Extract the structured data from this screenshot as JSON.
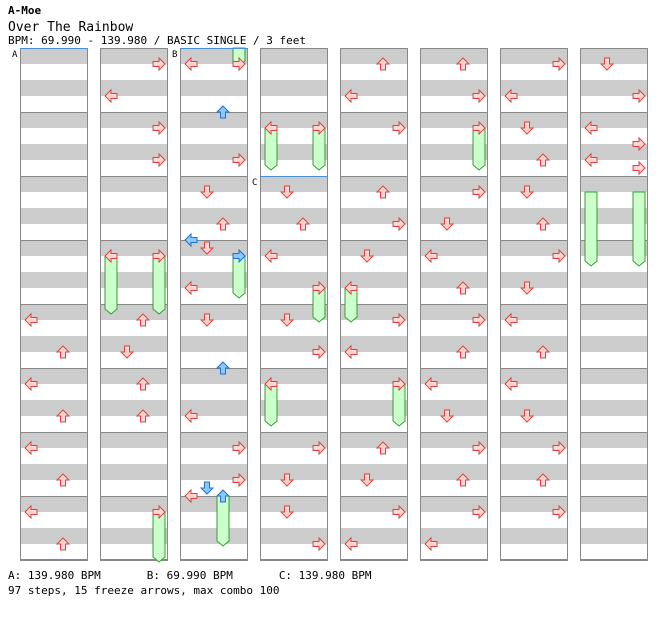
{
  "header": {
    "artist": "A-Moe",
    "title": "Over The Rainbow",
    "info": "BPM: 69.990 - 139.980 / BASIC SINGLE / 3 feet"
  },
  "footer": {
    "bpm_a": "A: 139.980 BPM",
    "bpm_b": "B: 69.990 BPM",
    "bpm_c": "C: 139.980 BPM",
    "stats": "97 steps, 15 freeze arrows, max combo 100"
  },
  "colors": {
    "stripe": "#cccccc",
    "arrow_red_fill": "#ffd6d6",
    "arrow_red_stroke": "#e04040",
    "arrow_blue_fill": "#8cc8ff",
    "arrow_blue_stroke": "#2070d0",
    "freeze_fill": "#ccffcc",
    "freeze_stroke": "#30a030",
    "bpm_line": "#4a90d9"
  },
  "chart_data": {
    "type": "stepchart",
    "columns": 8,
    "measures_per_column": 8,
    "lanes": [
      "left",
      "down",
      "up",
      "right"
    ],
    "bpm_sections": [
      {
        "label": "A",
        "col": 0,
        "pos": 0
      },
      {
        "label": "B",
        "col": 2,
        "pos": 0
      },
      {
        "label": "C",
        "col": 3,
        "pos": 4
      }
    ],
    "notes": [
      {
        "col": 0,
        "pos": 8.5,
        "lane": "left"
      },
      {
        "col": 0,
        "pos": 10.5,
        "lane": "left"
      },
      {
        "col": 0,
        "pos": 12.5,
        "lane": "left"
      },
      {
        "col": 0,
        "pos": 14.5,
        "lane": "left"
      },
      {
        "col": 0,
        "pos": 9.5,
        "lane": "up"
      },
      {
        "col": 0,
        "pos": 11.5,
        "lane": "up"
      },
      {
        "col": 0,
        "pos": 13.5,
        "lane": "up"
      },
      {
        "col": 0,
        "pos": 15.5,
        "lane": "up"
      },
      {
        "col": 1,
        "pos": 0.5,
        "lane": "right"
      },
      {
        "col": 1,
        "pos": 1.5,
        "lane": "left"
      },
      {
        "col": 1,
        "pos": 2.5,
        "lane": "right"
      },
      {
        "col": 1,
        "pos": 3.5,
        "lane": "right"
      },
      {
        "col": 1,
        "pos": 6.5,
        "lane": "left"
      },
      {
        "col": 1,
        "pos": 6.5,
        "lane": "right"
      },
      {
        "col": 1,
        "pos": 8.5,
        "lane": "up"
      },
      {
        "col": 1,
        "pos": 9.5,
        "lane": "down"
      },
      {
        "col": 1,
        "pos": 10.5,
        "lane": "up"
      },
      {
        "col": 1,
        "pos": 11.5,
        "lane": "up"
      },
      {
        "col": 1,
        "pos": 14.5,
        "lane": "right"
      },
      {
        "col": 2,
        "pos": 0.5,
        "lane": "left"
      },
      {
        "col": 2,
        "pos": 0.5,
        "lane": "right"
      },
      {
        "col": 2,
        "pos": 2.0,
        "lane": "up",
        "color": "blue"
      },
      {
        "col": 2,
        "pos": 3.5,
        "lane": "right"
      },
      {
        "col": 2,
        "pos": 4.5,
        "lane": "down"
      },
      {
        "col": 2,
        "pos": 5.5,
        "lane": "up"
      },
      {
        "col": 2,
        "pos": 6.0,
        "lane": "left",
        "color": "blue"
      },
      {
        "col": 2,
        "pos": 6.25,
        "lane": "down"
      },
      {
        "col": 2,
        "pos": 6.5,
        "lane": "right",
        "color": "blue"
      },
      {
        "col": 2,
        "pos": 7.5,
        "lane": "left"
      },
      {
        "col": 2,
        "pos": 8.5,
        "lane": "down"
      },
      {
        "col": 2,
        "pos": 10.0,
        "lane": "up",
        "color": "blue"
      },
      {
        "col": 2,
        "pos": 11.5,
        "lane": "left"
      },
      {
        "col": 2,
        "pos": 12.5,
        "lane": "right"
      },
      {
        "col": 2,
        "pos": 13.5,
        "lane": "right"
      },
      {
        "col": 2,
        "pos": 13.75,
        "lane": "down",
        "color": "blue"
      },
      {
        "col": 2,
        "pos": 14.0,
        "lane": "left"
      },
      {
        "col": 2,
        "pos": 14.0,
        "lane": "up",
        "color": "blue"
      },
      {
        "col": 3,
        "pos": 2.5,
        "lane": "left"
      },
      {
        "col": 3,
        "pos": 2.5,
        "lane": "right"
      },
      {
        "col": 3,
        "pos": 4.5,
        "lane": "down"
      },
      {
        "col": 3,
        "pos": 5.5,
        "lane": "up"
      },
      {
        "col": 3,
        "pos": 6.5,
        "lane": "left"
      },
      {
        "col": 3,
        "pos": 7.5,
        "lane": "right"
      },
      {
        "col": 3,
        "pos": 8.5,
        "lane": "down"
      },
      {
        "col": 3,
        "pos": 9.5,
        "lane": "right"
      },
      {
        "col": 3,
        "pos": 10.5,
        "lane": "left"
      },
      {
        "col": 3,
        "pos": 12.5,
        "lane": "right"
      },
      {
        "col": 3,
        "pos": 13.5,
        "lane": "down"
      },
      {
        "col": 3,
        "pos": 14.5,
        "lane": "down"
      },
      {
        "col": 3,
        "pos": 15.5,
        "lane": "right"
      },
      {
        "col": 4,
        "pos": 0.5,
        "lane": "up"
      },
      {
        "col": 4,
        "pos": 1.5,
        "lane": "left"
      },
      {
        "col": 4,
        "pos": 2.5,
        "lane": "right"
      },
      {
        "col": 4,
        "pos": 4.5,
        "lane": "up"
      },
      {
        "col": 4,
        "pos": 5.5,
        "lane": "right"
      },
      {
        "col": 4,
        "pos": 6.5,
        "lane": "down"
      },
      {
        "col": 4,
        "pos": 7.5,
        "lane": "left"
      },
      {
        "col": 4,
        "pos": 8.5,
        "lane": "right"
      },
      {
        "col": 4,
        "pos": 9.5,
        "lane": "left"
      },
      {
        "col": 4,
        "pos": 10.5,
        "lane": "right"
      },
      {
        "col": 4,
        "pos": 12.5,
        "lane": "up"
      },
      {
        "col": 4,
        "pos": 13.5,
        "lane": "down"
      },
      {
        "col": 4,
        "pos": 14.5,
        "lane": "right"
      },
      {
        "col": 4,
        "pos": 15.5,
        "lane": "left"
      },
      {
        "col": 5,
        "pos": 0.5,
        "lane": "up"
      },
      {
        "col": 5,
        "pos": 1.5,
        "lane": "right"
      },
      {
        "col": 5,
        "pos": 2.5,
        "lane": "right"
      },
      {
        "col": 5,
        "pos": 4.5,
        "lane": "right"
      },
      {
        "col": 5,
        "pos": 5.5,
        "lane": "down"
      },
      {
        "col": 5,
        "pos": 6.5,
        "lane": "left"
      },
      {
        "col": 5,
        "pos": 7.5,
        "lane": "up"
      },
      {
        "col": 5,
        "pos": 8.5,
        "lane": "right"
      },
      {
        "col": 5,
        "pos": 9.5,
        "lane": "up"
      },
      {
        "col": 5,
        "pos": 10.5,
        "lane": "left"
      },
      {
        "col": 5,
        "pos": 11.5,
        "lane": "down"
      },
      {
        "col": 5,
        "pos": 12.5,
        "lane": "right"
      },
      {
        "col": 5,
        "pos": 13.5,
        "lane": "up"
      },
      {
        "col": 5,
        "pos": 14.5,
        "lane": "right"
      },
      {
        "col": 5,
        "pos": 15.5,
        "lane": "left"
      },
      {
        "col": 6,
        "pos": 0.5,
        "lane": "right"
      },
      {
        "col": 6,
        "pos": 1.5,
        "lane": "left"
      },
      {
        "col": 6,
        "pos": 2.5,
        "lane": "down"
      },
      {
        "col": 6,
        "pos": 3.5,
        "lane": "up"
      },
      {
        "col": 6,
        "pos": 4.5,
        "lane": "down"
      },
      {
        "col": 6,
        "pos": 5.5,
        "lane": "up"
      },
      {
        "col": 6,
        "pos": 6.5,
        "lane": "right"
      },
      {
        "col": 6,
        "pos": 7.5,
        "lane": "down"
      },
      {
        "col": 6,
        "pos": 8.5,
        "lane": "left"
      },
      {
        "col": 6,
        "pos": 9.5,
        "lane": "up"
      },
      {
        "col": 6,
        "pos": 10.5,
        "lane": "left"
      },
      {
        "col": 6,
        "pos": 11.5,
        "lane": "down"
      },
      {
        "col": 6,
        "pos": 12.5,
        "lane": "right"
      },
      {
        "col": 6,
        "pos": 13.5,
        "lane": "up"
      },
      {
        "col": 6,
        "pos": 14.5,
        "lane": "right"
      },
      {
        "col": 7,
        "pos": 0.5,
        "lane": "down"
      },
      {
        "col": 7,
        "pos": 1.5,
        "lane": "right"
      },
      {
        "col": 7,
        "pos": 2.5,
        "lane": "left"
      },
      {
        "col": 7,
        "pos": 3.0,
        "lane": "right"
      },
      {
        "col": 7,
        "pos": 3.5,
        "lane": "left"
      },
      {
        "col": 7,
        "pos": 3.75,
        "lane": "right"
      }
    ],
    "freezes": [
      {
        "col": 1,
        "start": 6.5,
        "end": 8.25,
        "lane": "left"
      },
      {
        "col": 1,
        "start": 6.5,
        "end": 8.25,
        "lane": "right"
      },
      {
        "col": 1,
        "start": 14.5,
        "end": 16.0,
        "lane": "right"
      },
      {
        "col": 2,
        "start": 0.0,
        "end": 0.5,
        "lane": "right"
      },
      {
        "col": 2,
        "start": 6.5,
        "end": 7.75,
        "lane": "right"
      },
      {
        "col": 2,
        "start": 14.0,
        "end": 15.5,
        "lane": "up"
      },
      {
        "col": 3,
        "start": 2.5,
        "end": 3.75,
        "lane": "left"
      },
      {
        "col": 3,
        "start": 2.5,
        "end": 3.75,
        "lane": "right"
      },
      {
        "col": 3,
        "start": 7.5,
        "end": 8.5,
        "lane": "right"
      },
      {
        "col": 3,
        "start": 10.5,
        "end": 11.75,
        "lane": "left"
      },
      {
        "col": 4,
        "start": 7.5,
        "end": 8.5,
        "lane": "left"
      },
      {
        "col": 4,
        "start": 10.5,
        "end": 11.75,
        "lane": "right"
      },
      {
        "col": 5,
        "start": 2.5,
        "end": 3.75,
        "lane": "right"
      },
      {
        "col": 7,
        "start": 4.5,
        "end": 6.75,
        "lane": "left"
      },
      {
        "col": 7,
        "start": 4.5,
        "end": 6.75,
        "lane": "right"
      }
    ]
  }
}
